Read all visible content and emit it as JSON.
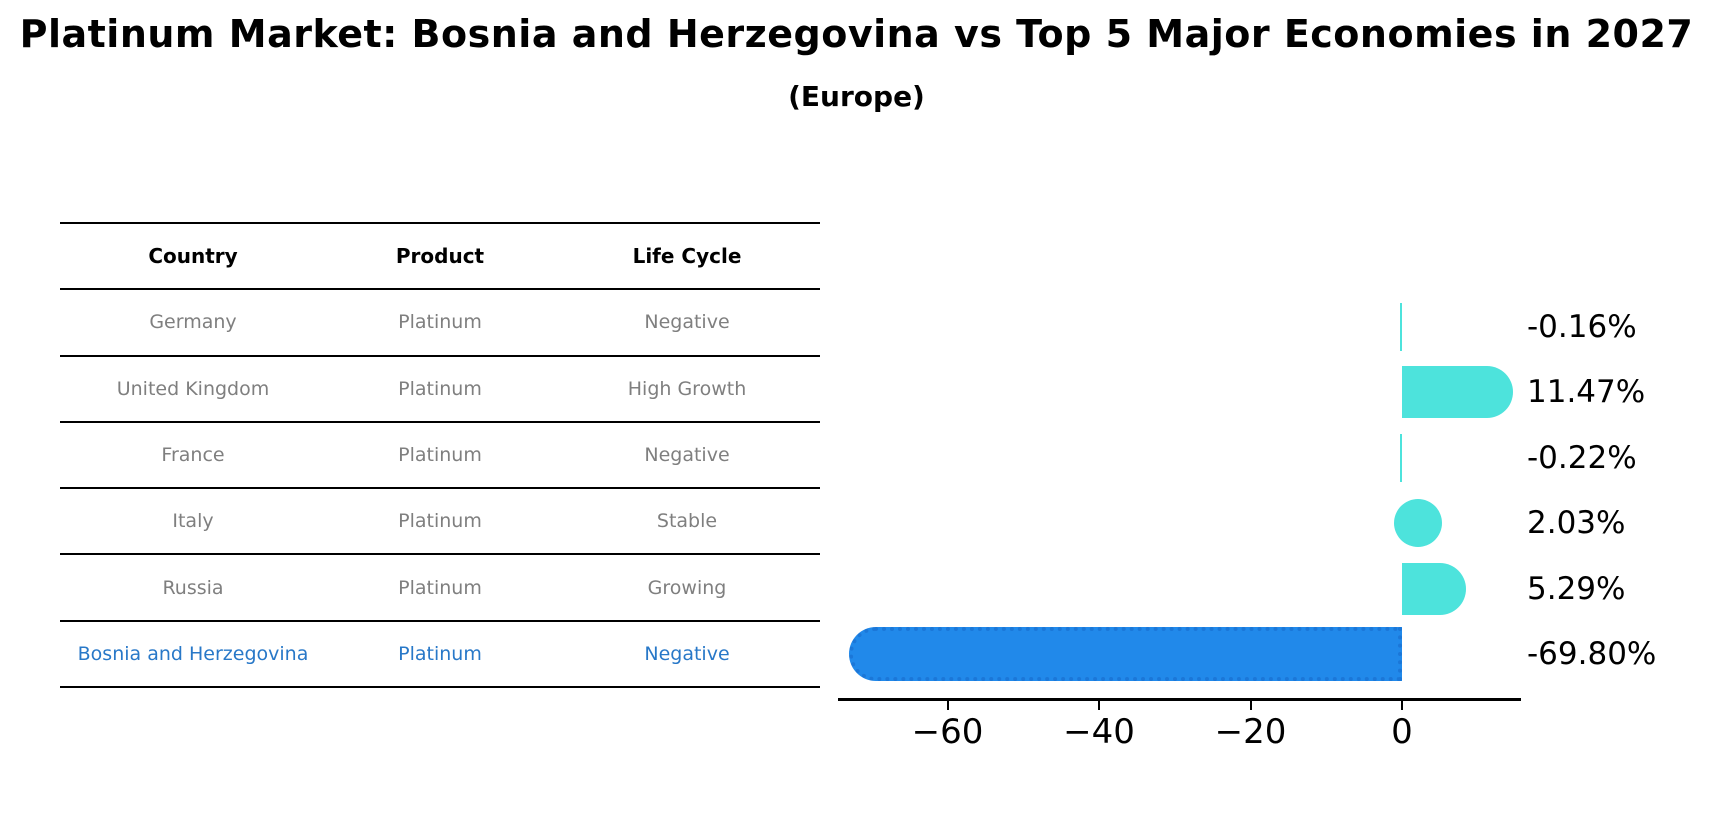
{
  "title": "Platinum Market: Bosnia and Herzegovina vs Top 5 Major Economies in 2027",
  "subtitle": "(Europe)",
  "table": {
    "headers": [
      "Country",
      "Product",
      "Life Cycle"
    ],
    "rows": [
      {
        "country": "Germany",
        "product": "Platinum",
        "life_cycle": "Negative",
        "highlight": false
      },
      {
        "country": "United Kingdom",
        "product": "Platinum",
        "life_cycle": "High Growth",
        "highlight": false
      },
      {
        "country": "France",
        "product": "Platinum",
        "life_cycle": "Negative",
        "highlight": false
      },
      {
        "country": "Italy",
        "product": "Platinum",
        "life_cycle": "Stable",
        "highlight": false
      },
      {
        "country": "Russia",
        "product": "Platinum",
        "life_cycle": "Growing",
        "highlight": false
      },
      {
        "country": "Bosnia and Herzegovina",
        "product": "Platinum",
        "life_cycle": "Negative",
        "highlight": true
      }
    ],
    "highlight_text_color": "#2878C8",
    "normal_text_color": "#7f7f7f"
  },
  "chart_data": {
    "type": "bar",
    "orientation": "horizontal",
    "categories": [
      "Germany",
      "United Kingdom",
      "France",
      "Italy",
      "Russia",
      "Bosnia and Herzegovina"
    ],
    "values": [
      -0.16,
      11.47,
      -0.22,
      2.03,
      5.29,
      -69.8
    ],
    "value_labels": [
      "-0.16%",
      "11.47%",
      "-0.22%",
      "2.03%",
      "5.29%",
      "-69.80%"
    ],
    "xticks": [
      -60,
      -40,
      -20,
      0
    ],
    "xtick_labels": [
      "−60",
      "−40",
      "−20",
      "0"
    ],
    "xlim": [
      -74.5,
      15.6
    ],
    "grid": false,
    "legend": null,
    "colors": {
      "default": "#4DE3DC",
      "highlight": "#2189EA",
      "highlight_edge": "#1b77d8"
    },
    "highlight_index": 5,
    "highlight_bar_style": "dashed-edge"
  }
}
